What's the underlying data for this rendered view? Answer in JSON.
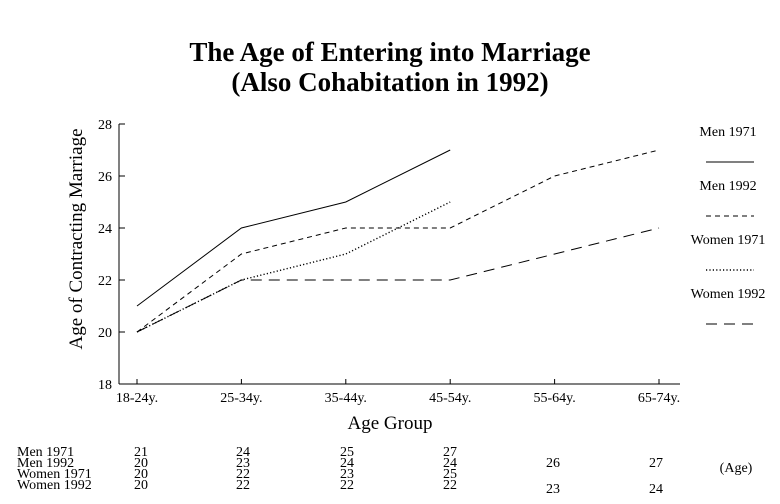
{
  "chart_data": {
    "type": "line",
    "title": "The Age of Entering into Marriage",
    "subtitle": "(Also Cohabitation in 1992)",
    "xlabel": "Age Group",
    "ylabel": "Age of Contracting Marriage",
    "categories": [
      "18-24y.",
      "25-34y.",
      "35-44y.",
      "45-54y.",
      "55-64y.",
      "65-74y."
    ],
    "ylim": [
      18,
      28
    ],
    "yticks": [
      "18",
      "20",
      "22",
      "24",
      "26",
      "28"
    ],
    "grid": false,
    "legend_position": "right",
    "series": [
      {
        "name": "Men 1971",
        "style": "solid",
        "color": "#000000",
        "values": [
          21,
          24,
          25,
          27,
          null,
          null
        ]
      },
      {
        "name": "Men 1992",
        "style": "dashed",
        "color": "#000000",
        "values": [
          20,
          23,
          24,
          24,
          26,
          27
        ]
      },
      {
        "name": "Women 1971",
        "style": "dotted",
        "color": "#000000",
        "values": [
          20,
          22,
          23,
          25,
          null,
          null
        ]
      },
      {
        "name": "Women 1992",
        "style": "longdash",
        "color": "#000000",
        "values": [
          20,
          22,
          22,
          22,
          23,
          24
        ]
      }
    ],
    "table": {
      "unit_label": "(Age)",
      "rows": [
        {
          "label": "Men 1971",
          "cells": [
            "21",
            "24",
            "25",
            "27",
            "",
            ""
          ]
        },
        {
          "label": "Men 1992",
          "cells": [
            "20",
            "23",
            "24",
            "24",
            "26",
            "27"
          ]
        },
        {
          "label": "Women 1971",
          "cells": [
            "20",
            "22",
            "23",
            "25",
            "",
            ""
          ]
        },
        {
          "label": "Women 1992",
          "cells": [
            "20",
            "22",
            "22",
            "22",
            "23",
            "24"
          ]
        }
      ]
    }
  }
}
